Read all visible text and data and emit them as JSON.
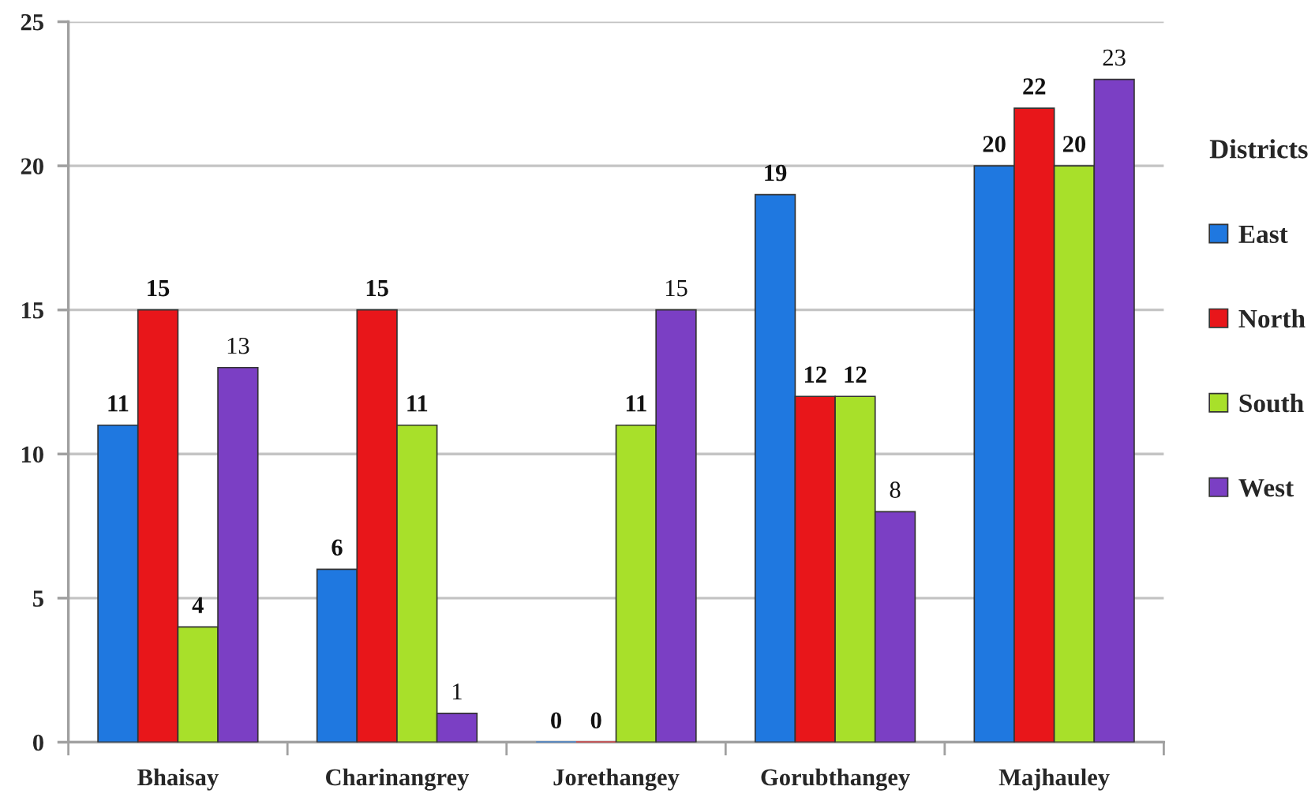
{
  "chart_data": {
    "type": "bar",
    "categories": [
      "Bhaisay",
      "Charinangrey",
      "Jorethangey",
      "Gorubthangey",
      "Majhauley"
    ],
    "series": [
      {
        "name": "East",
        "color": "#1f78e0",
        "values": [
          11,
          6,
          0,
          19,
          20
        ]
      },
      {
        "name": "North",
        "color": "#e8161a",
        "values": [
          15,
          15,
          0,
          12,
          22
        ]
      },
      {
        "name": "South",
        "color": "#a8e02a",
        "values": [
          4,
          11,
          11,
          12,
          20
        ]
      },
      {
        "name": "West",
        "color": "#7b3fc4",
        "values": [
          13,
          1,
          15,
          8,
          23
        ]
      }
    ],
    "ylim": [
      0,
      25
    ],
    "yticks": [
      0,
      5,
      10,
      15,
      20,
      25
    ],
    "grid": "y",
    "legend": "right",
    "legend_title": "Districts",
    "data_labels": true
  }
}
